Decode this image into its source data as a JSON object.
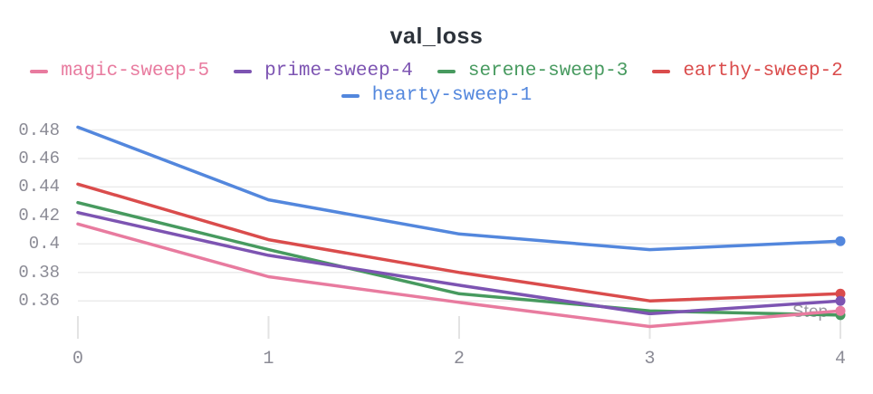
{
  "chart_data": {
    "type": "line",
    "title": "val_loss",
    "xlabel": "Step",
    "ylabel": "",
    "x": [
      0,
      1,
      2,
      3,
      4
    ],
    "x_tick_labels": [
      "0",
      "1",
      "2",
      "3",
      "4"
    ],
    "y_ticks": [
      0.48,
      0.46,
      0.44,
      0.42,
      0.4,
      0.38,
      0.36
    ],
    "y_tick_labels": [
      "0.48",
      "0.46",
      "0.44",
      "0.42",
      "0.4",
      "0.38",
      "0.36"
    ],
    "xlim": [
      0,
      4
    ],
    "ylim": [
      0.336,
      0.487
    ],
    "grid": true,
    "legend_position": "top",
    "end_markers": true,
    "series": [
      {
        "name": "magic-sweep-5",
        "color": "#E87B9F",
        "values": [
          0.414,
          0.377,
          0.359,
          0.342,
          0.353
        ]
      },
      {
        "name": "prime-sweep-4",
        "color": "#7D54B2",
        "values": [
          0.422,
          0.392,
          0.371,
          0.351,
          0.36
        ]
      },
      {
        "name": "serene-sweep-3",
        "color": "#479A5F",
        "values": [
          0.429,
          0.396,
          0.365,
          0.353,
          0.35
        ]
      },
      {
        "name": "earthy-sweep-2",
        "color": "#DA4C4C",
        "values": [
          0.442,
          0.403,
          0.38,
          0.36,
          0.365
        ]
      },
      {
        "name": "hearty-sweep-1",
        "color": "#5387DD",
        "values": [
          0.482,
          0.431,
          0.407,
          0.396,
          0.402
        ]
      }
    ],
    "colors": {
      "grid_line": "#ebebeb",
      "axis_tick": "#e3e3e3",
      "tick_label": "#8b8b95",
      "title_text": "#2c323a",
      "axis_title_text": "#9a9aa2"
    }
  }
}
